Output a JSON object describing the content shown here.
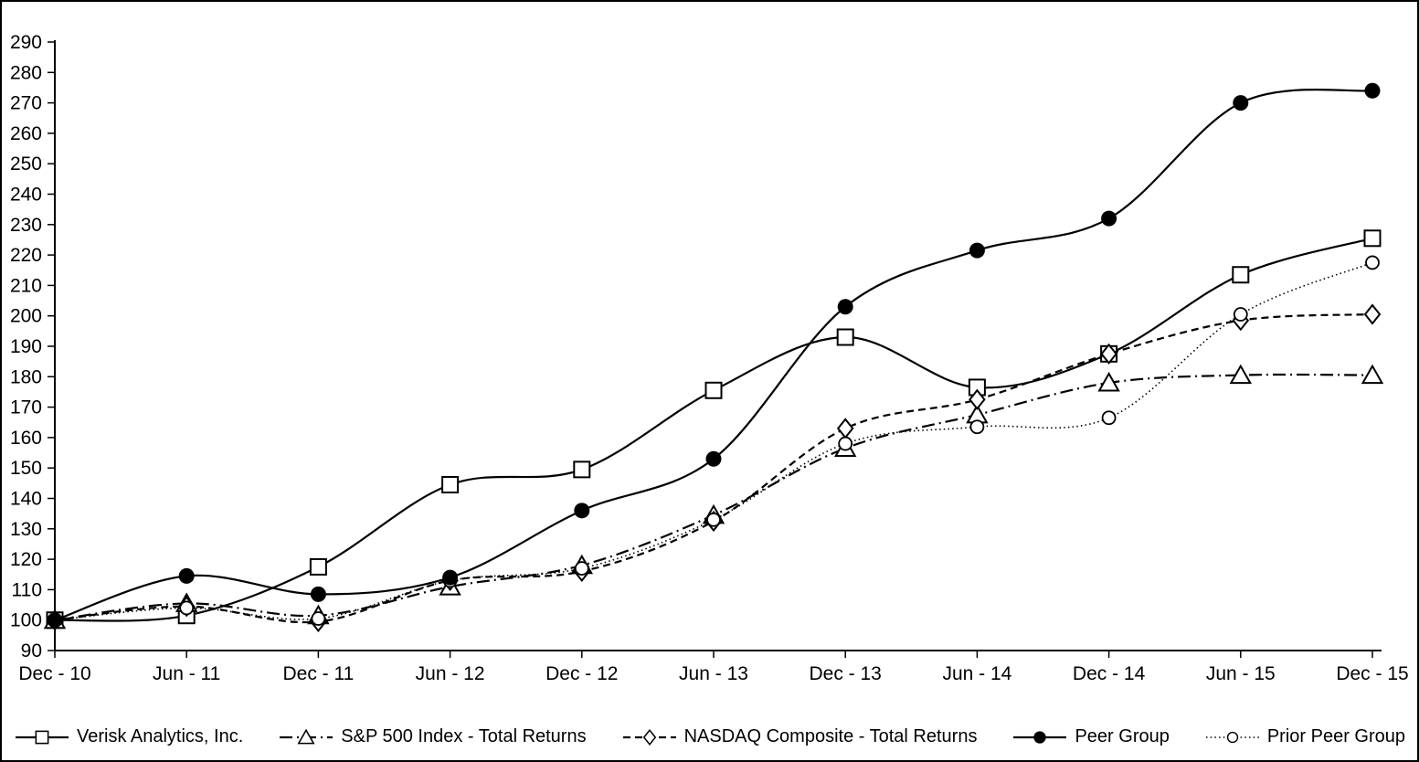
{
  "figure": {
    "background": "#ffffff",
    "border_color": "#000000",
    "axis_color": "#000000",
    "text_color": "#000000"
  },
  "chart_data": {
    "type": "line",
    "title": "",
    "xlabel": "",
    "ylabel": "",
    "ylim": [
      90,
      290
    ],
    "y_ticks": [
      290,
      280,
      270,
      260,
      250,
      240,
      230,
      220,
      210,
      200,
      190,
      180,
      170,
      160,
      150,
      140,
      130,
      120,
      110,
      100,
      90
    ],
    "grid": false,
    "legend_position": "bottom",
    "categories": [
      "Dec - 10",
      "Jun - 11",
      "Dec - 11",
      "Jun - 12",
      "Dec - 12",
      "Jun - 13",
      "Dec - 13",
      "Jun - 14",
      "Dec - 14",
      "Jun - 15",
      "Dec - 15"
    ],
    "series": [
      {
        "name": "Verisk Analytics, Inc.",
        "line": "solid",
        "marker": "square",
        "color": "#000000",
        "values": [
          100,
          101.5,
          117.5,
          144.5,
          149.5,
          175.5,
          193,
          176.5,
          187.5,
          213.5,
          225.5
        ]
      },
      {
        "name": "S&P 500 Index - Total Returns",
        "line": "dashdot",
        "marker": "triangle",
        "color": "#000000",
        "values": [
          100,
          105.5,
          101.5,
          111,
          118,
          134.5,
          156.5,
          167.5,
          178,
          180.5,
          180.5
        ]
      },
      {
        "name": "NASDAQ Composite - Total Returns",
        "line": "dashed",
        "marker": "diamond",
        "color": "#000000",
        "values": [
          100,
          104.5,
          99.5,
          113,
          116,
          132.5,
          163,
          172.5,
          187.5,
          198.5,
          200.5
        ]
      },
      {
        "name": "Peer Group",
        "line": "solid",
        "marker": "dot",
        "color": "#000000",
        "values": [
          100,
          114.5,
          108.5,
          114,
          136,
          153,
          203,
          221.5,
          232,
          270,
          274
        ]
      },
      {
        "name": "Prior Peer Group",
        "line": "dotted",
        "marker": "circle",
        "color": "#000000",
        "values": [
          100,
          104,
          100.5,
          113,
          117,
          133,
          158,
          163.5,
          166.5,
          200.5,
          217.5
        ]
      }
    ]
  }
}
